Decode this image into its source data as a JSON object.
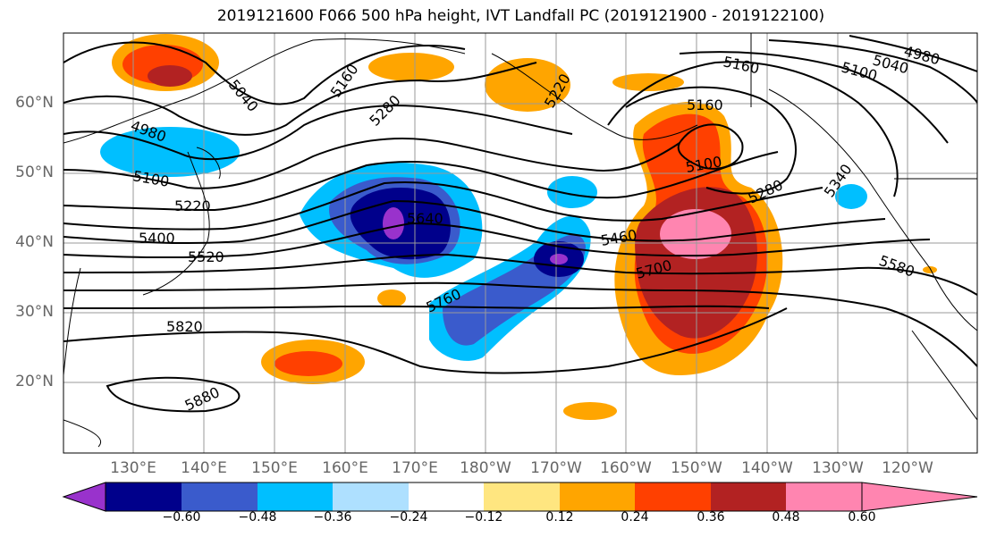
{
  "title": "2019121600 F066 500 hPa height, IVT Landfall PC (2019121900 - 2019122100)",
  "lat_labels": [
    "60°N",
    "50°N",
    "40°N",
    "30°N",
    "20°N"
  ],
  "lon_labels": [
    "130°E",
    "140°E",
    "150°E",
    "160°E",
    "170°E",
    "180°W",
    "170°W",
    "160°W",
    "150°W",
    "140°W",
    "130°W",
    "120°W"
  ],
  "contour_labels": [
    "5040",
    "4980",
    "5100",
    "5220",
    "5400",
    "5520",
    "5820",
    "5880",
    "5160",
    "5280",
    "5640",
    "5760",
    "5220",
    "5460",
    "5700",
    "5160",
    "5100",
    "5280",
    "5340",
    "5580",
    "5100",
    "5040",
    "4980",
    "5160"
  ],
  "colorbar": {
    "colors": [
      "#9932cc",
      "#00008b",
      "#3a5bcc",
      "#00bfff",
      "#aee0ff",
      "#ffffff",
      "#ffe680",
      "#ffa500",
      "#ff4000",
      "#b22222",
      "#ff85b0"
    ],
    "ticks": [
      "−0.60",
      "−0.48",
      "−0.36",
      "−0.24",
      "−0.12",
      "0.12",
      "0.24",
      "0.36",
      "0.48",
      "0.60"
    ]
  }
}
